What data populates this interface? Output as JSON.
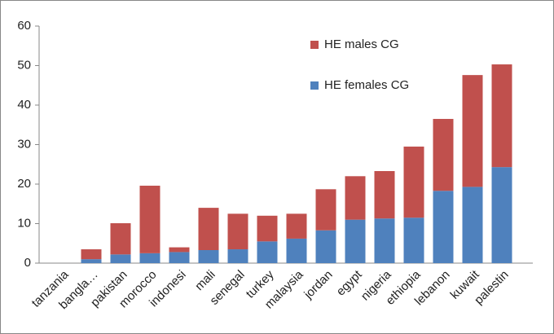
{
  "chart_data": {
    "type": "stacked-bar",
    "categories": [
      "tanzania",
      "bangla…",
      "pakistan",
      "morocco",
      "indonesi",
      "mali",
      "senegal",
      "turkey",
      "malaysia",
      "jordan",
      "egypt",
      "nigeria",
      "ethiopia",
      "lebanon",
      "kuwait",
      "palestin"
    ],
    "series": [
      {
        "name": "HE females CG",
        "color": "#4f81bd",
        "values": [
          0,
          1,
          2.2,
          2.5,
          2.8,
          3.3,
          3.5,
          5.5,
          6.2,
          8.3,
          11,
          11.3,
          11.5,
          18.3,
          19.3,
          24.3
        ]
      },
      {
        "name": "HE males CG",
        "color": "#c0504d",
        "values": [
          0,
          2.5,
          7.9,
          17.1,
          1.2,
          10.7,
          9,
          6.5,
          6.3,
          10.4,
          11,
          12,
          18,
          18.2,
          28.3,
          26
        ]
      }
    ],
    "ylim": [
      0,
      60
    ],
    "yticks": [
      0,
      10,
      20,
      30,
      40,
      50,
      60
    ],
    "grid": false,
    "legend": "top-center"
  }
}
